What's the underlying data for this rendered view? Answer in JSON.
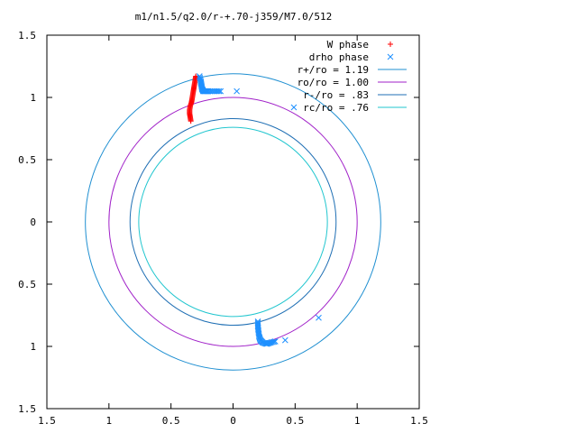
{
  "chart_data": {
    "type": "scatter",
    "title": "m1/n1.5/q2.0/r-+.70-j359/M7.0/512",
    "xlabel": "",
    "ylabel": "",
    "xlim": [
      -1.5,
      1.5
    ],
    "ylim": [
      -1.5,
      1.5
    ],
    "grid": false,
    "legend_position": "top-right",
    "x_tick_labels": [
      "1.5",
      "1",
      "0.5",
      "0",
      "0.5",
      "1",
      "1.5"
    ],
    "y_tick_labels": [
      "1.5",
      "1",
      "0.5",
      "0",
      "0.5",
      "1",
      "1.5"
    ],
    "tick_values": [
      -1.5,
      -1,
      -0.5,
      0,
      0.5,
      1,
      1.5
    ],
    "circles": [
      {
        "name": "r+/ro = 1.19",
        "radius": 1.19,
        "color": "#1f8fd1"
      },
      {
        "name": "ro/ro = 1.00",
        "radius": 1.0,
        "color": "#a020c8"
      },
      {
        "name": "r-/ro = .83",
        "radius": 0.83,
        "color": "#1f6fb4"
      },
      {
        "name": "rc/ro = .76",
        "radius": 0.76,
        "color": "#22c6cf"
      }
    ],
    "series": [
      {
        "name": "W phase",
        "marker": "+",
        "color": "#ff0000",
        "points": [
          [
            -0.34,
            0.81
          ],
          [
            -0.345,
            0.84
          ],
          [
            -0.35,
            0.87
          ],
          [
            -0.35,
            0.9
          ],
          [
            -0.345,
            0.93
          ],
          [
            -0.335,
            0.96
          ],
          [
            -0.33,
            0.99
          ],
          [
            -0.325,
            1.02
          ],
          [
            -0.32,
            1.05
          ],
          [
            -0.315,
            1.08
          ],
          [
            -0.31,
            1.11
          ],
          [
            -0.305,
            1.14
          ],
          [
            -0.3,
            1.17
          ]
        ]
      },
      {
        "name": "drho phase",
        "marker": "x",
        "color": "#1e90ff",
        "points": [
          [
            -0.27,
            1.17
          ],
          [
            -0.26,
            1.13
          ],
          [
            -0.255,
            1.1
          ],
          [
            -0.25,
            1.07
          ],
          [
            -0.24,
            1.05
          ],
          [
            -0.22,
            1.05
          ],
          [
            -0.2,
            1.05
          ],
          [
            -0.15,
            1.05
          ],
          [
            -0.1,
            1.05
          ],
          [
            0.03,
            1.05
          ],
          [
            0.49,
            0.92
          ],
          [
            0.2,
            -0.8
          ],
          [
            0.2,
            -0.84
          ],
          [
            0.205,
            -0.88
          ],
          [
            0.21,
            -0.92
          ],
          [
            0.22,
            -0.95
          ],
          [
            0.24,
            -0.97
          ],
          [
            0.27,
            -0.98
          ],
          [
            0.3,
            -0.97
          ],
          [
            0.34,
            -0.96
          ],
          [
            0.42,
            -0.95
          ],
          [
            0.69,
            -0.77
          ]
        ]
      }
    ]
  }
}
